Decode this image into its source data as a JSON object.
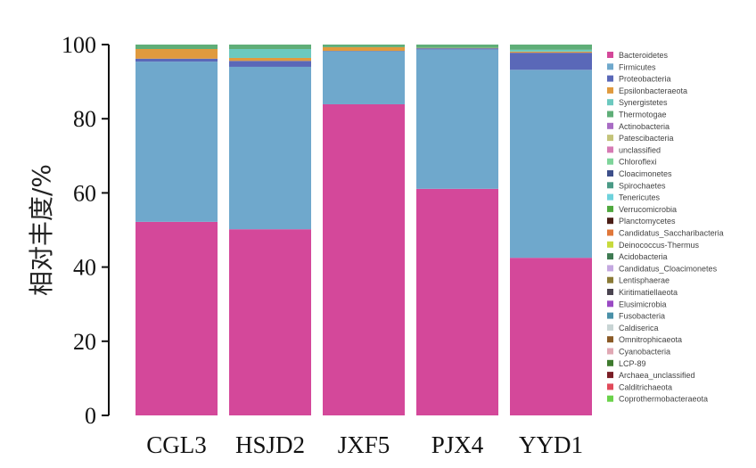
{
  "chart_data": {
    "type": "bar",
    "stacked": true,
    "ylabel": "相对丰度/%",
    "xlabel": "",
    "ylim": [
      0,
      100
    ],
    "yticks": [
      0,
      20,
      40,
      60,
      80,
      100
    ],
    "grid": false,
    "legend_position": "right",
    "categories": [
      "CGL3",
      "HSJD2",
      "JXF5",
      "PJX4",
      "YYD1"
    ],
    "series": [
      {
        "name": "Bacteroidetes",
        "color": "#d4489a",
        "values": [
          52.2,
          50.2,
          83.9,
          61.1,
          42.5
        ]
      },
      {
        "name": "Firmicutes",
        "color": "#6fa8cc",
        "values": [
          43.2,
          43.8,
          14.3,
          37.6,
          50.7
        ]
      },
      {
        "name": "Proteobacteria",
        "color": "#5a68b8",
        "values": [
          0.8,
          1.6,
          0.1,
          0.3,
          4.6
        ]
      },
      {
        "name": "Epsilonbacteraeota",
        "color": "#e09a3e",
        "values": [
          2.6,
          0.8,
          1.0,
          0.1,
          0.3
        ]
      },
      {
        "name": "Synergistetes",
        "color": "#6cc9bf",
        "values": [
          0.0,
          2.4,
          0.0,
          0.0,
          0.5
        ]
      },
      {
        "name": "Thermotogae",
        "color": "#5fae78",
        "values": [
          1.2,
          1.2,
          0.7,
          0.9,
          1.4
        ]
      },
      {
        "name": "Actinobacteria",
        "color": "#a86cc4",
        "values": [
          0,
          0,
          0,
          0,
          0
        ]
      },
      {
        "name": "Patescibacteria",
        "color": "#c4c47a",
        "values": [
          0,
          0,
          0,
          0,
          0
        ]
      },
      {
        "name": "unclassified",
        "color": "#d67ab4",
        "values": [
          0,
          0,
          0,
          0,
          0
        ]
      },
      {
        "name": "Chloroflexi",
        "color": "#7ed49a",
        "values": [
          0,
          0,
          0,
          0,
          0
        ]
      },
      {
        "name": "Cloacimonetes",
        "color": "#3d4f8a",
        "values": [
          0,
          0,
          0,
          0,
          0
        ]
      },
      {
        "name": "Spirochaetes",
        "color": "#4a9a86",
        "values": [
          0,
          0,
          0,
          0,
          0
        ]
      },
      {
        "name": "Tenericutes",
        "color": "#6ed2dc",
        "values": [
          0,
          0,
          0,
          0,
          0
        ]
      },
      {
        "name": "Verrucomicrobia",
        "color": "#4fa83e",
        "values": [
          0,
          0,
          0,
          0,
          0
        ]
      },
      {
        "name": "Planctomycetes",
        "color": "#4a1e16",
        "values": [
          0,
          0,
          0,
          0,
          0
        ]
      },
      {
        "name": "Candidatus_Saccharibacteria",
        "color": "#e0773a",
        "values": [
          0,
          0,
          0,
          0,
          0
        ]
      },
      {
        "name": "Deinococcus-Thermus",
        "color": "#c8da3c",
        "values": [
          0,
          0,
          0,
          0,
          0
        ]
      },
      {
        "name": "Acidobacteria",
        "color": "#3e7a52",
        "values": [
          0,
          0,
          0,
          0,
          0
        ]
      },
      {
        "name": "Candidatus_Cloacimonetes",
        "color": "#c4a8e0",
        "values": [
          0,
          0,
          0,
          0,
          0
        ]
      },
      {
        "name": "Lentisphaerae",
        "color": "#8a7a36",
        "values": [
          0,
          0,
          0,
          0,
          0
        ]
      },
      {
        "name": "Kiritimatiellaeota",
        "color": "#4a4450",
        "values": [
          0,
          0,
          0,
          0,
          0
        ]
      },
      {
        "name": "Elusimicrobia",
        "color": "#9a4ac4",
        "values": [
          0,
          0,
          0,
          0,
          0
        ]
      },
      {
        "name": "Fusobacteria",
        "color": "#4a90a8",
        "values": [
          0,
          0,
          0,
          0,
          0
        ]
      },
      {
        "name": "Caldiserica",
        "color": "#c8d4d4",
        "values": [
          0,
          0,
          0,
          0,
          0
        ]
      },
      {
        "name": "Omnitrophicaeota",
        "color": "#8a5a26",
        "values": [
          0,
          0,
          0,
          0,
          0
        ]
      },
      {
        "name": "Cyanobacteria",
        "color": "#e0a8b4",
        "values": [
          0,
          0,
          0,
          0,
          0
        ]
      },
      {
        "name": "LCP-89",
        "color": "#3e7a2e",
        "values": [
          0,
          0,
          0,
          0,
          0
        ]
      },
      {
        "name": "Archaea_unclassified",
        "color": "#7a1e26",
        "values": [
          0,
          0,
          0,
          0,
          0
        ]
      },
      {
        "name": "Calditrichaeota",
        "color": "#e04a5a",
        "values": [
          0,
          0,
          0,
          0,
          0
        ]
      },
      {
        "name": "Coprothermobacteraeota",
        "color": "#6ad24a",
        "values": [
          0,
          0,
          0,
          0,
          0
        ]
      }
    ]
  }
}
